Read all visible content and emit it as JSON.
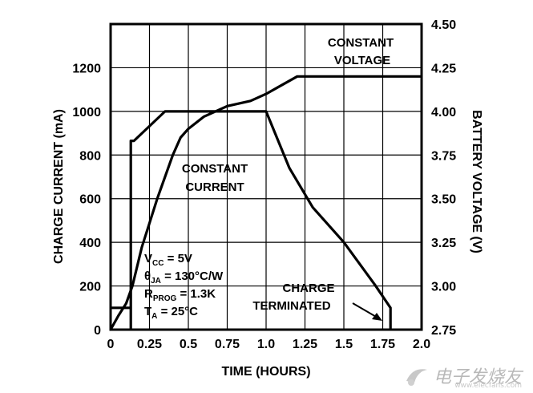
{
  "chart_data": {
    "type": "line",
    "xlabel": "TIME (HOURS)",
    "ylabel": "CHARGE CURRENT (mA)",
    "y2label": "BATTERY VOLTAGE (V)",
    "xlim": [
      0,
      2.0
    ],
    "ylim": [
      0,
      1400
    ],
    "y2lim": [
      2.75,
      4.5
    ],
    "x_ticks": [
      "0",
      "0.25",
      "0.5",
      "0.75",
      "1.0",
      "1.25",
      "1.5",
      "1.75",
      "2.0"
    ],
    "y_ticks": [
      "0",
      "200",
      "400",
      "600",
      "800",
      "1000",
      "1200"
    ],
    "y2_ticks": [
      "2.75",
      "3.00",
      "3.25",
      "3.50",
      "3.75",
      "4.00",
      "4.25",
      "4.50"
    ],
    "grid": true,
    "series": [
      {
        "axis": "left",
        "x": [
          0.13,
          0.13,
          0.15,
          0.35,
          1.0,
          1.15,
          1.3,
          1.5,
          1.7,
          1.8,
          1.8
        ],
        "values": [
          0,
          865,
          865,
          1000,
          1000,
          740,
          560,
          400,
          205,
          100,
          0
        ]
      },
      {
        "axis": "right",
        "x": [
          0.0,
          0.05,
          0.1,
          0.14,
          0.2,
          0.3,
          0.4,
          0.45,
          0.5,
          0.6,
          0.75,
          0.9,
          1.0,
          1.1,
          1.2,
          1.5,
          2.0
        ],
        "values": [
          2.75,
          2.83,
          2.9,
          3.0,
          3.22,
          3.5,
          3.75,
          3.85,
          3.9,
          3.97,
          4.03,
          4.06,
          4.1,
          4.15,
          4.2,
          4.2,
          4.2
        ]
      }
    ],
    "annotations": {
      "constant_voltage": [
        "CONSTANT",
        "VOLTAGE"
      ],
      "constant_current": [
        "CONSTANT",
        "CURRENT"
      ],
      "charge_terminated": [
        "CHARGE",
        "TERMINATED"
      ]
    },
    "conditions": [
      {
        "main": "V",
        "sub": "CC",
        "rest": " = 5V"
      },
      {
        "main": "θ",
        "sub": "JA",
        "rest": " = 130°C/W"
      },
      {
        "main": "R",
        "sub": "PROG",
        "rest": " = 1.3K"
      },
      {
        "main": "T",
        "sub": "A",
        "rest": " = 25°C"
      }
    ]
  },
  "watermark": {
    "text": "电子发烧友",
    "url": "www.elecfans.com"
  }
}
